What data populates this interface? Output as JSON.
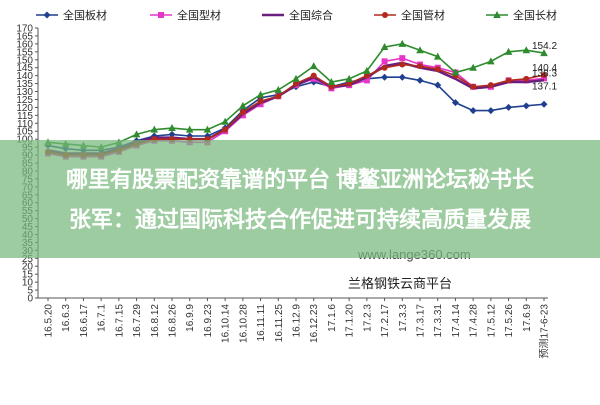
{
  "chart_data": {
    "type": "line",
    "title": "",
    "xlabel": "",
    "ylabel": "",
    "ylim": [
      0,
      170
    ],
    "yticks": [
      0,
      5,
      10,
      15,
      20,
      25,
      30,
      35,
      40,
      45,
      50,
      55,
      60,
      65,
      70,
      75,
      80,
      85,
      90,
      95,
      100,
      105,
      110,
      115,
      120,
      125,
      130,
      135,
      140,
      145,
      150,
      155,
      160,
      165,
      170
    ],
    "grid": false,
    "legend": "top",
    "categories": [
      "16.5.20",
      "16.6.3",
      "16.6.17",
      "16.7.1",
      "16.7.15",
      "16.7.29",
      "16.8.12",
      "16.8.26",
      "16.9.9",
      "16.9.23",
      "16.10.14",
      "16.10.28",
      "16.11.11",
      "16.11.25",
      "16.12.9",
      "16.12.23",
      "17.1.6",
      "17.1.20",
      "17.2.3",
      "17.2.17",
      "17.3.3",
      "17.3.17",
      "17.3.31",
      "17.4.14",
      "17.4.28",
      "17.5.12",
      "17.5.26",
      "17.6.9",
      "预测17-6-23"
    ],
    "series": [
      {
        "name": "全国板材",
        "color": "#1f3f8f",
        "values": [
          96,
          94,
          93,
          93,
          95,
          99,
          102,
          103,
          102,
          102,
          107,
          118,
          126,
          128,
          133,
          136,
          133,
          136,
          138,
          139,
          139,
          137,
          134,
          123,
          118,
          118,
          120,
          121,
          122
        ]
      },
      {
        "name": "全国型材",
        "color": "#e636c8",
        "values": [
          91,
          89,
          89,
          89,
          92,
          96,
          99,
          99,
          98,
          98,
          105,
          115,
          122,
          127,
          134,
          138,
          132,
          134,
          137,
          149,
          151,
          147,
          145,
          142,
          133,
          133,
          137,
          137,
          138.3
        ]
      },
      {
        "name": "全国综合",
        "color": "#6a1f7f",
        "values": [
          93,
          91,
          91,
          91,
          94,
          98,
          101,
          101,
          100,
          100,
          106,
          116,
          123,
          127,
          134,
          139,
          133,
          134,
          139,
          146,
          148,
          145,
          143,
          138,
          132,
          133,
          136,
          136,
          137.1
        ]
      },
      {
        "name": "全国管材",
        "color": "#b22a1f",
        "values": [
          92,
          90,
          90,
          90,
          93,
          97,
          100,
          100,
          100,
          100,
          106,
          117,
          124,
          127,
          135,
          140,
          133,
          135,
          140,
          145,
          147,
          146,
          144,
          140,
          133,
          134,
          137,
          138,
          140.4
        ]
      },
      {
        "name": "全国长材",
        "color": "#2e8b2e",
        "values": [
          98,
          97,
          96,
          95,
          98,
          103,
          106,
          107,
          106,
          106,
          111,
          121,
          128,
          131,
          138,
          146,
          136,
          138,
          143,
          158,
          160,
          156,
          152,
          142,
          145,
          149,
          155,
          156,
          154.2
        ]
      }
    ],
    "end_labels": [
      "154.2",
      "140.4",
      "138.3",
      "137.1"
    ]
  },
  "legend": {
    "items": [
      "全国板材",
      "全国型材",
      "全国综合",
      "全国管材",
      "全国长材"
    ]
  },
  "overlay": {
    "line1": "哪里有股票配资靠谱的平台 博鳌亚洲论坛秘书长",
    "line2": "张军：通过国际科技合作促进可持续高质量发展"
  },
  "watermark": {
    "url": "www.lange360.com",
    "platform": "兰格钢铁云商平台"
  }
}
